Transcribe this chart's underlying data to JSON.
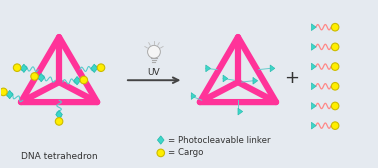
{
  "bg_color": "#e5eaf0",
  "pink": "#FF3399",
  "cyan": "#3DD6C8",
  "cyan_dark": "#20B8AA",
  "yellow": "#FFEE00",
  "yellow_edge": "#CCBB00",
  "pink_line": "#FF8888",
  "arrow_color": "#444444",
  "text_color": "#333333",
  "title1": "DNA tetrahedron",
  "legend1": "= Photocleavable linker",
  "legend2": "= Cargo",
  "uv_label": "UV",
  "fig_width": 3.78,
  "fig_height": 1.68,
  "lw_tetra": 4.5,
  "xlim": [
    0,
    10
  ],
  "ylim": [
    0,
    4.4
  ]
}
